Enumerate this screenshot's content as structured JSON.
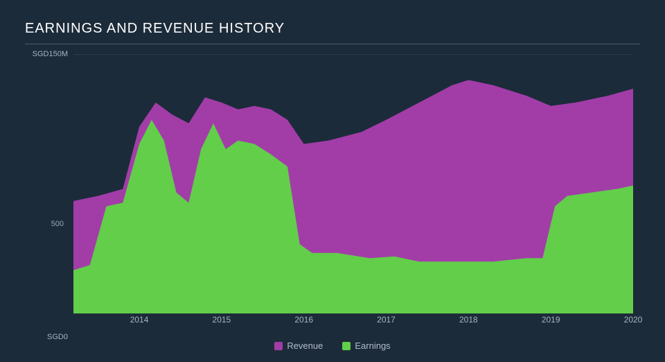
{
  "chart": {
    "type": "area",
    "title": "EARNINGS AND REVENUE HISTORY",
    "title_fontsize": 20,
    "title_color": "#ffffff",
    "background_color": "#1c2b3a",
    "grid_color": "#2d3c4c",
    "axis_label_color": "#a8b4c1",
    "ylim": [
      0,
      150
    ],
    "y_ticks": [
      {
        "value": 0,
        "label": "SGD0"
      },
      {
        "value": 150,
        "label": "SGD150M"
      }
    ],
    "y_hidden_tick": {
      "value": 60,
      "label": "500"
    },
    "x_domain": [
      2013.2,
      2020.0
    ],
    "x_ticks": [
      2014,
      2015,
      2016,
      2017,
      2018,
      2019,
      2020
    ],
    "series": [
      {
        "name": "Revenue",
        "color": "#a23da8",
        "points": [
          [
            2013.2,
            65
          ],
          [
            2013.5,
            68
          ],
          [
            2013.8,
            72
          ],
          [
            2014.0,
            108
          ],
          [
            2014.2,
            122
          ],
          [
            2014.4,
            115
          ],
          [
            2014.6,
            110
          ],
          [
            2014.8,
            125
          ],
          [
            2015.0,
            122
          ],
          [
            2015.2,
            118
          ],
          [
            2015.4,
            120
          ],
          [
            2015.6,
            118
          ],
          [
            2015.8,
            112
          ],
          [
            2016.0,
            98
          ],
          [
            2016.3,
            100
          ],
          [
            2016.7,
            105
          ],
          [
            2017.0,
            112
          ],
          [
            2017.4,
            122
          ],
          [
            2017.8,
            132
          ],
          [
            2018.0,
            135
          ],
          [
            2018.3,
            132
          ],
          [
            2018.7,
            126
          ],
          [
            2019.0,
            120
          ],
          [
            2019.3,
            122
          ],
          [
            2019.7,
            126
          ],
          [
            2020.0,
            130
          ]
        ]
      },
      {
        "name": "Earnings",
        "color": "#62ce4a",
        "points": [
          [
            2013.2,
            25
          ],
          [
            2013.4,
            28
          ],
          [
            2013.6,
            62
          ],
          [
            2013.8,
            64
          ],
          [
            2014.0,
            98
          ],
          [
            2014.15,
            112
          ],
          [
            2014.3,
            100
          ],
          [
            2014.45,
            70
          ],
          [
            2014.6,
            64
          ],
          [
            2014.75,
            95
          ],
          [
            2014.9,
            110
          ],
          [
            2015.05,
            95
          ],
          [
            2015.2,
            100
          ],
          [
            2015.4,
            98
          ],
          [
            2015.6,
            92
          ],
          [
            2015.8,
            85
          ],
          [
            2015.95,
            40
          ],
          [
            2016.1,
            35
          ],
          [
            2016.4,
            35
          ],
          [
            2016.8,
            32
          ],
          [
            2017.1,
            33
          ],
          [
            2017.4,
            30
          ],
          [
            2017.7,
            30
          ],
          [
            2018.0,
            30
          ],
          [
            2018.3,
            30
          ],
          [
            2018.7,
            32
          ],
          [
            2018.9,
            32
          ],
          [
            2019.05,
            62
          ],
          [
            2019.2,
            68
          ],
          [
            2019.5,
            70
          ],
          [
            2019.8,
            72
          ],
          [
            2020.0,
            74
          ]
        ]
      }
    ],
    "legend_fontsize": 13,
    "legend_color": "#b0bcc9"
  }
}
